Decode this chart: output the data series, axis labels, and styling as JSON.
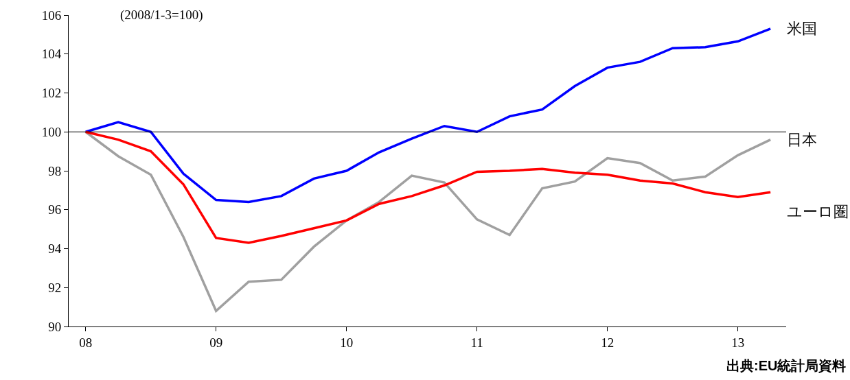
{
  "chart_data": {
    "type": "line",
    "annotations": [
      "(2008/1-3=100)",
      "出典:EU統計局資料"
    ],
    "x": [
      2008,
      2008.25,
      2008.5,
      2008.75,
      2009,
      2009.25,
      2009.5,
      2009.75,
      2010,
      2010.25,
      2010.5,
      2010.75,
      2011,
      2011.25,
      2011.5,
      2011.75,
      2012,
      2012.25,
      2012.5,
      2012.75,
      2013,
      2013.25
    ],
    "series": [
      {
        "name": "米国",
        "color": "#0000ff",
        "values": [
          100,
          100.5,
          100,
          97.85,
          96.5,
          96.4,
          96.7,
          97.6,
          98.0,
          98.95,
          99.65,
          100.3,
          100.0,
          100.8,
          101.15,
          102.35,
          103.3,
          103.6,
          104.3,
          104.35,
          104.65,
          105.3
        ]
      },
      {
        "name": "日本",
        "color": "#a0a0a0",
        "values": [
          100,
          98.75,
          97.8,
          94.6,
          90.8,
          92.3,
          92.4,
          94.1,
          95.45,
          96.4,
          97.75,
          97.4,
          95.5,
          94.7,
          97.1,
          97.45,
          98.65,
          98.4,
          97.5,
          97.7,
          98.8,
          99.6
        ]
      },
      {
        "name": "ユーロ圏",
        "color": "#ff0000",
        "values": [
          100,
          99.6,
          99.0,
          97.3,
          94.55,
          94.3,
          94.65,
          95.05,
          95.45,
          96.3,
          96.7,
          97.25,
          97.95,
          98.0,
          98.1,
          97.9,
          97.8,
          97.5,
          97.35,
          96.9,
          96.65,
          96.9
        ]
      }
    ],
    "xlim": [
      2007.87,
      2013.37
    ],
    "xticks": [
      {
        "value": 2008,
        "label": "08"
      },
      {
        "value": 2009,
        "label": "09"
      },
      {
        "value": 2010,
        "label": "10"
      },
      {
        "value": 2011,
        "label": "11"
      },
      {
        "value": 2012,
        "label": "12"
      },
      {
        "value": 2013,
        "label": "13"
      }
    ],
    "ylim": [
      90,
      106
    ],
    "yticks": [
      90,
      92,
      94,
      96,
      98,
      100,
      102,
      104,
      106
    ],
    "ref_lines": [
      {
        "axis": "y",
        "value": 100,
        "color": "#000000"
      }
    ],
    "grid": false,
    "legend": false,
    "marker": "none",
    "line_style": "solid"
  }
}
